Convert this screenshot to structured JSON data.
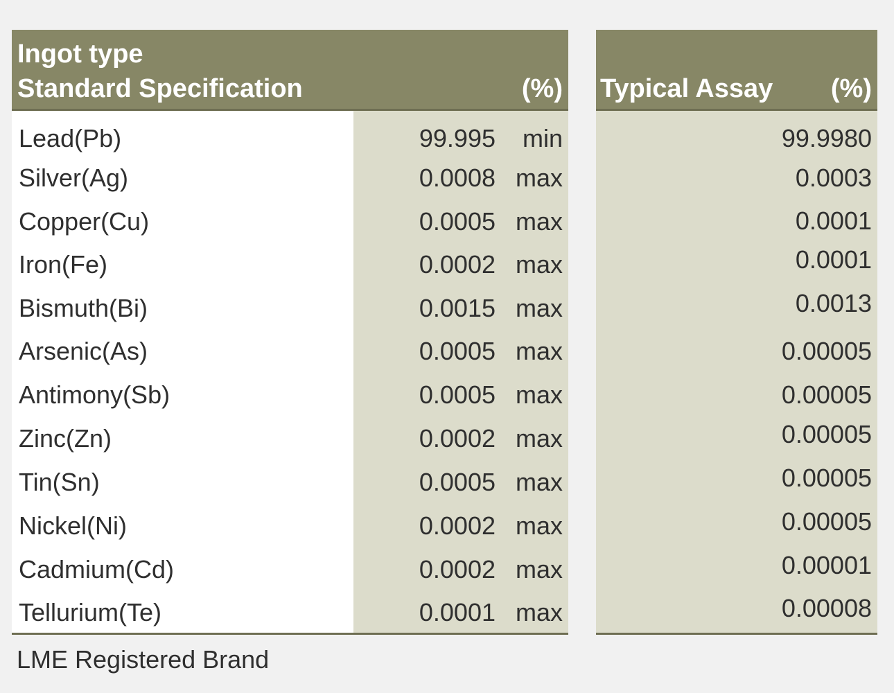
{
  "spec_header": {
    "line1": "Ingot type",
    "line2": "Standard Specification",
    "unit": "(%)"
  },
  "assay_header": {
    "title": "Typical Assay",
    "unit": "(%)"
  },
  "rows": [
    {
      "element": "Lead(Pb)",
      "spec": "99.995",
      "qualifier": "min",
      "assay": "99.9980"
    },
    {
      "element": "Silver(Ag)",
      "spec": "0.0008",
      "qualifier": "max",
      "assay": "0.0003"
    },
    {
      "element": "Copper(Cu)",
      "spec": "0.0005",
      "qualifier": "max",
      "assay": "0.0001"
    },
    {
      "element": "Iron(Fe)",
      "spec": "0.0002",
      "qualifier": "max",
      "assay": "0.0001"
    },
    {
      "element": "Bismuth(Bi)",
      "spec": "0.0015",
      "qualifier": "max",
      "assay": "0.0013"
    },
    {
      "element": "Arsenic(As)",
      "spec": "0.0005",
      "qualifier": "max",
      "assay": "0.00005"
    },
    {
      "element": "Antimony(Sb)",
      "spec": "0.0005",
      "qualifier": "max",
      "assay": "0.00005"
    },
    {
      "element": "Zinc(Zn)",
      "spec": "0.0002",
      "qualifier": "max",
      "assay": "0.00005"
    },
    {
      "element": "Tin(Sn)",
      "spec": "0.0005",
      "qualifier": "max",
      "assay": "0.00005"
    },
    {
      "element": "Nickel(Ni)",
      "spec": "0.0002",
      "qualifier": "max",
      "assay": "0.00005"
    },
    {
      "element": "Cadmium(Cd)",
      "spec": "0.0002",
      "qualifier": "max",
      "assay": "0.00001"
    },
    {
      "element": "Tellurium(Te)",
      "spec": "0.0001",
      "qualifier": "max",
      "assay": "0.00008"
    }
  ],
  "footer": "LME Registered Brand"
}
